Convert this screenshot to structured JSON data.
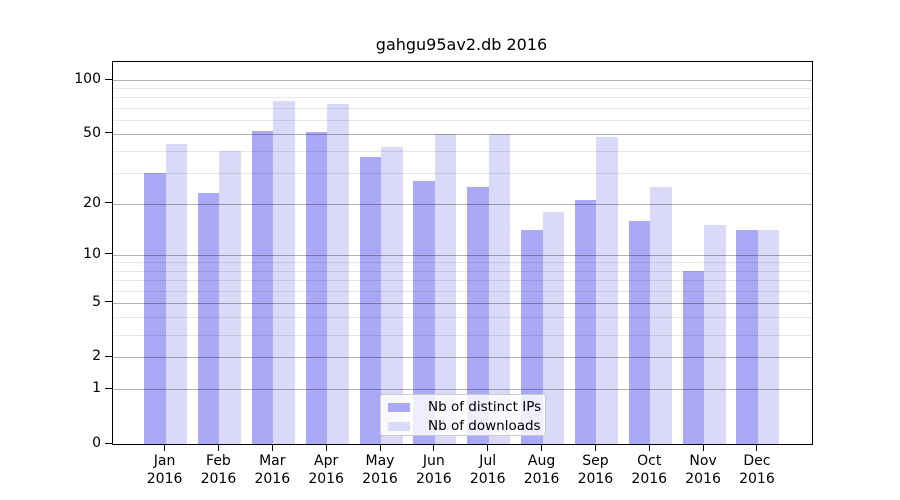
{
  "chart_data": {
    "type": "bar",
    "title": "gahgu95av2.db 2016",
    "categories": [
      "Jan",
      "Feb",
      "Mar",
      "Apr",
      "May",
      "Jun",
      "Jul",
      "Aug",
      "Sep",
      "Oct",
      "Nov",
      "Dec"
    ],
    "category_year": "2016",
    "series": [
      {
        "name": "Nb of distinct IPs",
        "color": "#a9a9f5",
        "values": [
          30,
          23,
          52,
          51,
          37,
          27,
          25,
          14,
          21,
          16,
          8,
          14
        ]
      },
      {
        "name": "Nb of downloads",
        "color": "#dadaf8",
        "values": [
          44,
          40,
          76,
          74,
          42,
          50,
          50,
          18,
          48,
          25,
          15,
          14
        ]
      }
    ],
    "xlabel": "",
    "ylabel": "",
    "yscale": "log1p",
    "ylim": [
      0,
      126
    ],
    "yticks": [
      0,
      1,
      2,
      5,
      10,
      20,
      50,
      100
    ],
    "minor_gridlines": [
      3,
      4,
      6,
      7,
      8,
      9,
      30,
      40,
      60,
      70,
      80,
      90
    ],
    "grid": true,
    "legend_position": "lower center"
  },
  "colors": {
    "background": "#ffffff",
    "axis": "#000000",
    "legend_border": "#cccccc"
  }
}
